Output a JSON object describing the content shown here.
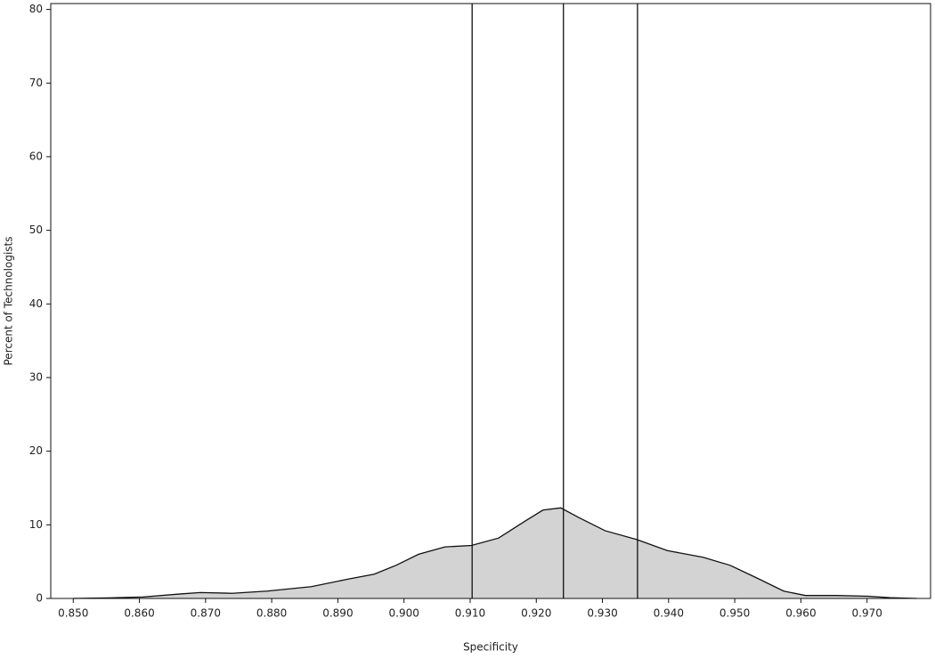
{
  "chart_data": {
    "type": "area",
    "x_label": "Specificity",
    "y_label": "Percent of Technologists",
    "x": [
      0.85,
      0.8565,
      0.8605,
      0.866,
      0.8692,
      0.874,
      0.8793,
      0.886,
      0.8914,
      0.8955,
      0.8988,
      0.9022,
      0.9062,
      0.9102,
      0.9143,
      0.9183,
      0.921,
      0.9237,
      0.9264,
      0.9304,
      0.9352,
      0.9398,
      0.9452,
      0.9493,
      0.9533,
      0.9574,
      0.9607,
      0.9654,
      0.9701,
      0.9735,
      0.9775
    ],
    "values": [
      0,
      0.1,
      0.2,
      0.6,
      0.8,
      0.7,
      1.0,
      1.6,
      2.6,
      3.3,
      4.5,
      6.0,
      7.0,
      7.2,
      8.2,
      10.5,
      12.0,
      12.3,
      11.0,
      9.2,
      8.0,
      6.5,
      5.6,
      4.5,
      2.8,
      1.0,
      0.4,
      0.4,
      0.3,
      0.1,
      0.0
    ],
    "color": "#d3d3d3",
    "line_color": "#111111",
    "vlines": [
      0.9103,
      0.9241,
      0.9353
    ],
    "xlim": [
      0.8466,
      0.9796
    ],
    "ylim": [
      0,
      80.8
    ],
    "xticks": [
      {
        "value": 0.85,
        "label": "0.850"
      },
      {
        "value": 0.86,
        "label": "0.860"
      },
      {
        "value": 0.87,
        "label": "0.870"
      },
      {
        "value": 0.88,
        "label": "0.880"
      },
      {
        "value": 0.89,
        "label": "0.890"
      },
      {
        "value": 0.9,
        "label": "0.900"
      },
      {
        "value": 0.91,
        "label": "0.910"
      },
      {
        "value": 0.92,
        "label": "0.920"
      },
      {
        "value": 0.93,
        "label": "0.930"
      },
      {
        "value": 0.94,
        "label": "0.940"
      },
      {
        "value": 0.95,
        "label": "0.950"
      },
      {
        "value": 0.96,
        "label": "0.960"
      },
      {
        "value": 0.97,
        "label": "0.970"
      }
    ],
    "yticks": [
      0,
      10,
      20,
      30,
      40,
      50,
      60,
      70,
      80
    ],
    "grid": false
  }
}
